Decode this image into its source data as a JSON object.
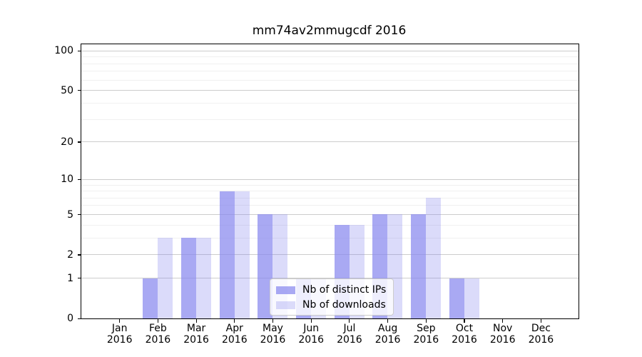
{
  "title": "mm74av2mmugcdf 2016",
  "legend": {
    "items": [
      {
        "label": "Nb of distinct IPs"
      },
      {
        "label": "Nb of downloads"
      }
    ]
  },
  "chart_data": {
    "type": "bar",
    "title": "mm74av2mmugcdf 2016",
    "categories": [
      "Jan 2016",
      "Feb 2016",
      "Mar 2016",
      "Apr 2016",
      "May 2016",
      "Jun 2016",
      "Jul 2016",
      "Aug 2016",
      "Sep 2016",
      "Oct 2016",
      "Nov 2016",
      "Dec 2016"
    ],
    "x_tick_line1": [
      "Jan",
      "Feb",
      "Mar",
      "Apr",
      "May",
      "Jun",
      "Jul",
      "Aug",
      "Sep",
      "Oct",
      "Nov",
      "Dec"
    ],
    "x_tick_line2": "2016",
    "series": [
      {
        "name": "Nb of distinct IPs",
        "color": "#8888ee",
        "alpha": 0.72,
        "values": [
          0,
          1,
          3,
          8,
          5,
          1,
          4,
          5,
          5,
          1,
          0,
          0
        ]
      },
      {
        "name": "Nb of downloads",
        "color": "#8888ee",
        "alpha": 0.3,
        "values": [
          0,
          3,
          3,
          8,
          5,
          1,
          4,
          5,
          7,
          1,
          0,
          0
        ]
      }
    ],
    "yscale": "log1p",
    "ylim": [
      0,
      113
    ],
    "y_major_ticks": [
      0,
      1,
      2,
      5,
      10,
      20,
      50,
      100
    ],
    "y_minor_gridlines": [
      3,
      4,
      6,
      7,
      8,
      9,
      30,
      40,
      60,
      70,
      80,
      90
    ],
    "grid": true,
    "legend_position": "lower center inside"
  },
  "colors": {
    "bar_base": "#8888ee",
    "bar_dark_rendered": "#a9a9f3",
    "bar_light_rendered": "#dbdbfa",
    "grid_major": "#cccccc",
    "grid_minor": "#f0f0f0",
    "spine": "#000000",
    "text": "#000000",
    "legend_border": "#cccccc",
    "background": "#ffffff"
  }
}
